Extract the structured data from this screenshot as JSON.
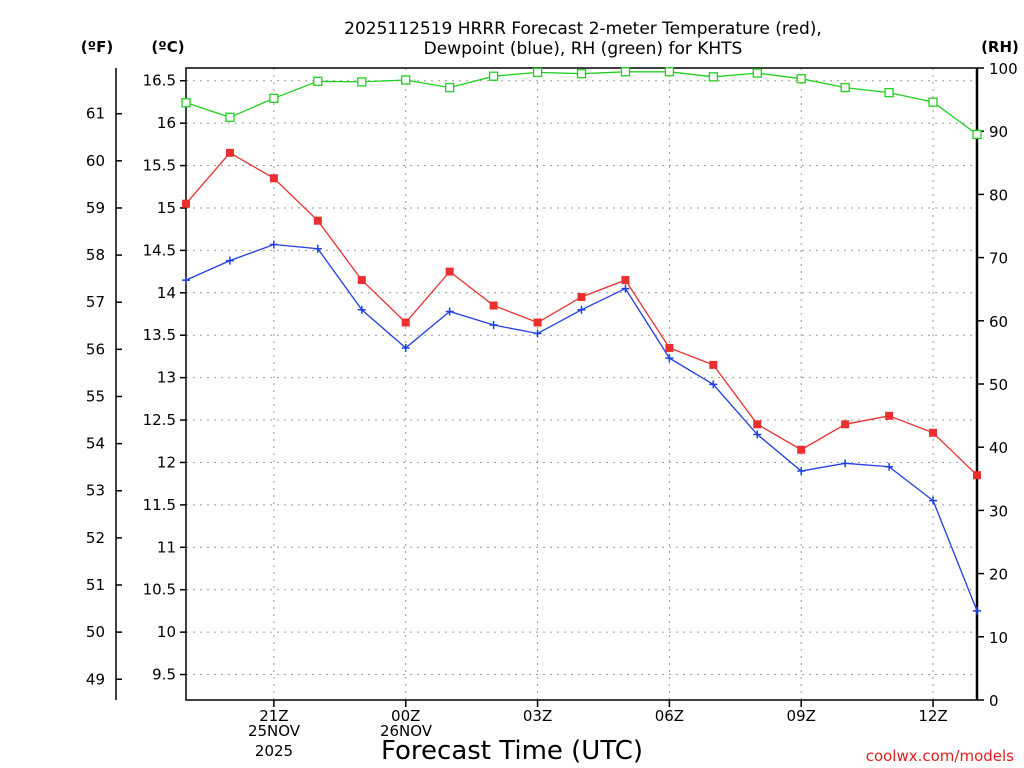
{
  "chart_data": {
    "type": "line",
    "title_line1": "2025112519 HRRR Forecast 2-meter Temperature (red),",
    "title_line2": "Dewpoint (blue), RH (green) for KHTS",
    "left_unit_f": "(ºF)",
    "left_unit_c": "(ºC)",
    "right_unit": "(RH)",
    "xlabel": "Forecast Time (UTC)",
    "credit": "coolwx.com/models",
    "x_start_label": "25NOV",
    "x_year_label": "2025",
    "x_day2_label": "26NOV",
    "x_ticks": [
      {
        "hour": 2,
        "label": "21Z"
      },
      {
        "hour": 5,
        "label": "00Z"
      },
      {
        "hour": 8,
        "label": "03Z"
      },
      {
        "hour": 11,
        "label": "06Z"
      },
      {
        "hour": 14,
        "label": "09Z"
      },
      {
        "hour": 17,
        "label": "12Z"
      }
    ],
    "x_range": [
      0,
      18
    ],
    "c_range": [
      9.2,
      16.65
    ],
    "c_ticks": [
      "9.5",
      "10",
      "10.5",
      "11",
      "11.5",
      "12",
      "12.5",
      "13",
      "13.5",
      "14",
      "14.5",
      "15",
      "15.5",
      "16",
      "16.5"
    ],
    "f_ticks": [
      "49",
      "50",
      "51",
      "52",
      "53",
      "54",
      "55",
      "56",
      "57",
      "58",
      "59",
      "60",
      "61"
    ],
    "rh_range": [
      0,
      100
    ],
    "rh_ticks": [
      "0",
      "10",
      "20",
      "30",
      "40",
      "50",
      "60",
      "70",
      "80",
      "90",
      "100"
    ],
    "hours": [
      0,
      1,
      2,
      3,
      4,
      5,
      6,
      7,
      8,
      9,
      10,
      11,
      12,
      13,
      14,
      15,
      16,
      17,
      18
    ],
    "series": [
      {
        "name": "Temperature",
        "color": "#e83030",
        "marker": "square-filled",
        "values": [
          15.05,
          15.65,
          15.35,
          14.85,
          14.15,
          13.65,
          14.25,
          13.85,
          13.65,
          13.95,
          14.15,
          13.35,
          13.15,
          12.45,
          12.15,
          12.45,
          12.55,
          12.35,
          11.85
        ]
      },
      {
        "name": "Dewpoint",
        "color": "#2040e0",
        "marker": "plus",
        "values": [
          14.15,
          14.38,
          14.57,
          14.52,
          13.8,
          13.35,
          13.78,
          13.62,
          13.52,
          13.8,
          14.05,
          13.23,
          12.92,
          12.33,
          11.9,
          11.99,
          11.95,
          11.55,
          10.25
        ]
      },
      {
        "name": "RH",
        "color": "#20d020",
        "marker": "square-open",
        "axis": "right",
        "values": [
          94.5,
          92.2,
          95.2,
          97.9,
          97.8,
          98.1,
          96.9,
          98.7,
          99.3,
          99.1,
          99.4,
          99.4,
          98.6,
          99.2,
          98.3,
          96.9,
          96.1,
          94.6,
          89.5
        ]
      }
    ]
  }
}
